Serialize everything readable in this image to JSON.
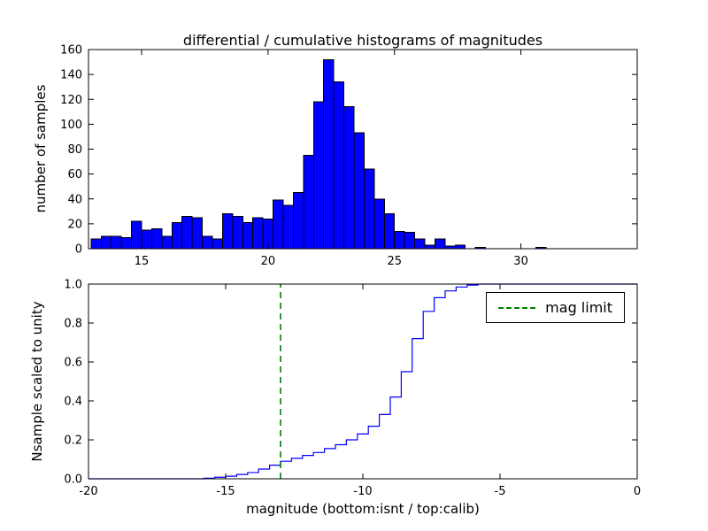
{
  "figure": {
    "background": "#ffffff",
    "frame_color": "#000000"
  },
  "chart_data": [
    {
      "type": "bar",
      "title": "differential / cumulative histograms of magnitudes",
      "ylabel": "number of samples",
      "xlabel": "",
      "bar_color": "#0000ff",
      "bar_edge_color": "#000000",
      "grid": false,
      "bin_start": 13.0,
      "bin_width": 0.4,
      "values": [
        8,
        10,
        10,
        9,
        22,
        15,
        16,
        10,
        21,
        26,
        25,
        10,
        8,
        28,
        26,
        21,
        25,
        24,
        39,
        35,
        45,
        75,
        118,
        152,
        134,
        114,
        93,
        64,
        40,
        28,
        14,
        13,
        8,
        3,
        8,
        2,
        3,
        0,
        1,
        0,
        0,
        0,
        0,
        0,
        1
      ],
      "xlim": [
        12.9,
        34.6
      ],
      "ylim": [
        0,
        160
      ],
      "xticks": [
        15,
        20,
        25,
        30
      ],
      "xtick_labels": [
        "15",
        "20",
        "25",
        "30"
      ],
      "yticks": [
        0,
        20,
        40,
        60,
        80,
        100,
        120,
        140,
        160
      ],
      "ytick_labels": [
        "0",
        "20",
        "40",
        "60",
        "80",
        "100",
        "120",
        "140",
        "160"
      ]
    },
    {
      "type": "line",
      "title": "",
      "ylabel": "Nsample scaled to unity",
      "xlabel": "magnitude (bottom:isnt / top:calib)",
      "line_color": "#0000ff",
      "line_style": "step-post",
      "grid": false,
      "steps": [
        [
          -20,
          0
        ],
        [
          -15.8,
          0.003
        ],
        [
          -15.4,
          0.008
        ],
        [
          -15.0,
          0.013
        ],
        [
          -14.6,
          0.022
        ],
        [
          -14.2,
          0.032
        ],
        [
          -13.8,
          0.05
        ],
        [
          -13.4,
          0.07
        ],
        [
          -13.0,
          0.09
        ],
        [
          -12.6,
          0.105
        ],
        [
          -12.2,
          0.12
        ],
        [
          -11.8,
          0.135
        ],
        [
          -11.4,
          0.155
        ],
        [
          -11.0,
          0.175
        ],
        [
          -10.6,
          0.2
        ],
        [
          -10.2,
          0.23
        ],
        [
          -9.8,
          0.27
        ],
        [
          -9.4,
          0.33
        ],
        [
          -9.0,
          0.42
        ],
        [
          -8.6,
          0.55
        ],
        [
          -8.2,
          0.72
        ],
        [
          -7.8,
          0.86
        ],
        [
          -7.4,
          0.93
        ],
        [
          -7.0,
          0.965
        ],
        [
          -6.6,
          0.985
        ],
        [
          -6.2,
          0.995
        ],
        [
          -5.8,
          1.0
        ],
        [
          0,
          1.0
        ]
      ],
      "vline": {
        "x": -13.0,
        "color": "#008000",
        "style": "dashed",
        "label": "mag limit"
      },
      "legend": {
        "label": "mag limit",
        "position": "upper right"
      },
      "xlim": [
        -20,
        0
      ],
      "ylim": [
        0,
        1
      ],
      "xticks": [
        -20,
        -15,
        -10,
        -5,
        0
      ],
      "xtick_labels": [
        "-20",
        "-15",
        "-10",
        "-5",
        "0"
      ],
      "yticks": [
        0,
        0.2,
        0.4,
        0.6,
        0.8,
        1.0
      ],
      "ytick_labels": [
        "0.0",
        "0.2",
        "0.4",
        "0.6",
        "0.8",
        "1.0"
      ]
    }
  ]
}
